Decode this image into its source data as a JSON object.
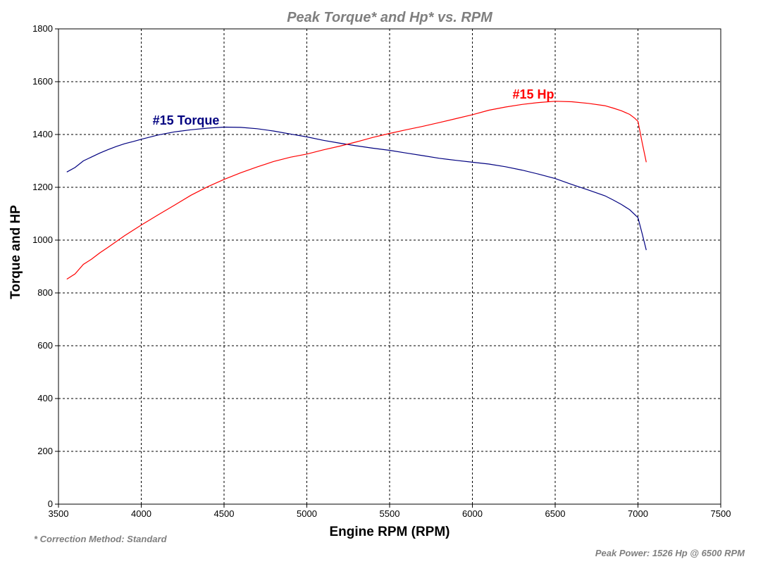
{
  "chart_data": {
    "type": "line",
    "title": "Peak Torque* and Hp* vs. RPM",
    "xlabel": "Engine RPM (RPM)",
    "ylabel": "Torque and HP",
    "xlim": [
      3500,
      7500
    ],
    "ylim": [
      0,
      1800
    ],
    "x_ticks": [
      3500,
      4000,
      4500,
      5000,
      5500,
      6000,
      6500,
      7000,
      7500
    ],
    "y_ticks": [
      0,
      200,
      400,
      600,
      800,
      1000,
      1200,
      1400,
      1600,
      1800
    ],
    "grid": true,
    "series": [
      {
        "name": "#15 Torque",
        "color": "#000080",
        "x": [
          3550,
          3600,
          3650,
          3700,
          3750,
          3800,
          3850,
          3900,
          3950,
          4000,
          4100,
          4200,
          4300,
          4400,
          4500,
          4600,
          4700,
          4800,
          4900,
          5000,
          5100,
          5200,
          5300,
          5400,
          5500,
          5600,
          5700,
          5800,
          5900,
          6000,
          6100,
          6200,
          6300,
          6400,
          6500,
          6600,
          6700,
          6800,
          6850,
          6900,
          6950,
          7000,
          7025,
          7050
        ],
        "y": [
          1258,
          1275,
          1300,
          1315,
          1330,
          1343,
          1355,
          1365,
          1373,
          1382,
          1398,
          1410,
          1418,
          1424,
          1428,
          1427,
          1422,
          1413,
          1402,
          1391,
          1378,
          1367,
          1357,
          1348,
          1340,
          1330,
          1320,
          1310,
          1302,
          1295,
          1288,
          1278,
          1265,
          1250,
          1233,
          1211,
          1190,
          1168,
          1152,
          1135,
          1115,
          1085,
          1025,
          962
        ]
      },
      {
        "name": "#15 Hp",
        "color": "#ff0000",
        "x": [
          3550,
          3600,
          3650,
          3700,
          3750,
          3800,
          3900,
          4000,
          4100,
          4200,
          4300,
          4400,
          4500,
          4600,
          4700,
          4800,
          4900,
          5000,
          5100,
          5200,
          5300,
          5400,
          5500,
          5600,
          5700,
          5800,
          5900,
          6000,
          6100,
          6200,
          6300,
          6400,
          6500,
          6600,
          6700,
          6800,
          6850,
          6900,
          6950,
          6980,
          7000,
          7025,
          7050
        ],
        "y": [
          852,
          872,
          908,
          928,
          952,
          973,
          1017,
          1057,
          1095,
          1132,
          1170,
          1202,
          1230,
          1255,
          1277,
          1298,
          1314,
          1326,
          1342,
          1356,
          1372,
          1389,
          1404,
          1418,
          1431,
          1445,
          1460,
          1475,
          1492,
          1504,
          1514,
          1521,
          1526,
          1524,
          1518,
          1509,
          1500,
          1490,
          1476,
          1462,
          1450,
          1370,
          1295
        ]
      }
    ],
    "annotations": [
      "* Correction Method: Standard",
      "Peak Power: 1526 Hp @ 6500 RPM"
    ]
  }
}
